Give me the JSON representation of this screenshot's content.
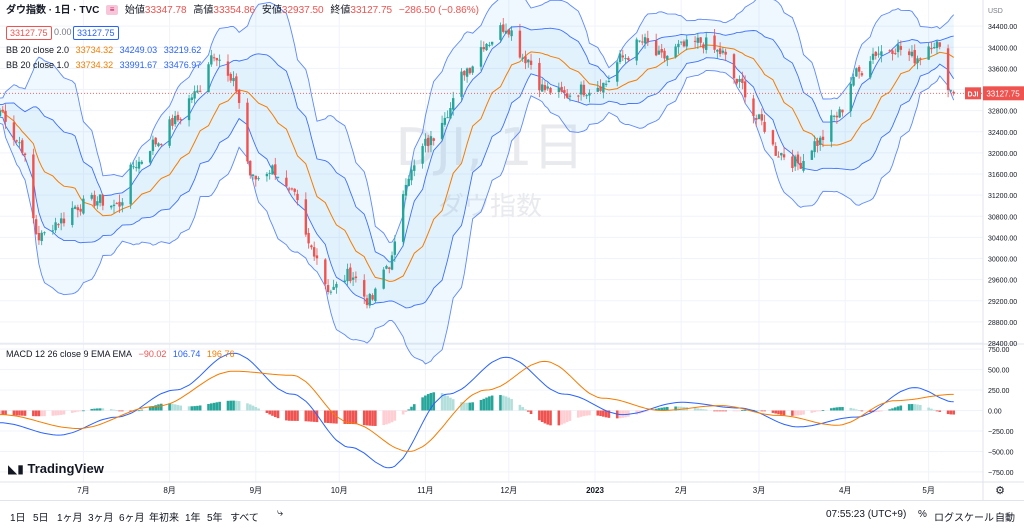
{
  "header": {
    "symbol": "ダウ指数 · 1日 · TVC",
    "ohlc": [
      {
        "label": "始値",
        "value": "33347.78"
      },
      {
        "label": "高値",
        "value": "33354.86"
      },
      {
        "label": "安値",
        "value": "32937.50"
      },
      {
        "label": "終値",
        "value": "33127.75"
      }
    ],
    "change": "−286.50 (−0.86%)",
    "bid": "33127.75",
    "spread": "0.00",
    "ask": "33127.75"
  },
  "indicators": {
    "bb2": {
      "label": "BB 20 close 2.0",
      "basis": "33734.32",
      "upper": "34249.03",
      "lower": "33219.62"
    },
    "bb1": {
      "label": "BB 20 close 1.0",
      "basis": "33734.32",
      "upper": "33991.67",
      "lower": "33476.97"
    },
    "macd": {
      "label": "MACD 12 26 close 9 EMA EMA",
      "hist": "−90.02",
      "macd": "106.74",
      "signal": "196.76"
    }
  },
  "watermark": {
    "line1": "DJI, 1日",
    "line2": "ダウ指数"
  },
  "last_price_tag": {
    "symbol": "DJI",
    "value": "33127.75"
  },
  "branding": "TradingView",
  "colors": {
    "up": "#26a69a",
    "down": "#ef5350",
    "bb_band": "#2962ff",
    "basis": "#f57c00",
    "macd": "#2962ff",
    "signal": "#f57c00"
  },
  "chart_data": [
    {
      "type": "candlestick",
      "currency": "USD",
      "ylim": [
        28400,
        34800
      ],
      "y_ticks": [
        "34400.00",
        "34000.00",
        "33600.00",
        "33200.00",
        "32800.00",
        "32400.00",
        "32000.00",
        "31600.00",
        "31200.00",
        "30800.00",
        "30400.00",
        "30000.00",
        "29600.00",
        "29200.00",
        "28800.00",
        "28400.00"
      ],
      "x_ticks": [
        "7月",
        "8月",
        "9月",
        "10月",
        "11月",
        "12月",
        "2023",
        "2月",
        "3月",
        "4月",
        "5月"
      ],
      "close_path": [
        {
          "x": "2022-06-01",
          "y": 32800
        },
        {
          "x": "2022-06-08",
          "y": 32200
        },
        {
          "x": "2022-06-15",
          "y": 30400
        },
        {
          "x": "2022-06-22",
          "y": 30700
        },
        {
          "x": "2022-06-29",
          "y": 31000
        },
        {
          "x": "2022-07-06",
          "y": 31100
        },
        {
          "x": "2022-07-13",
          "y": 31000
        },
        {
          "x": "2022-07-20",
          "y": 31800
        },
        {
          "x": "2022-07-27",
          "y": 32200
        },
        {
          "x": "2022-08-03",
          "y": 32600
        },
        {
          "x": "2022-08-10",
          "y": 33100
        },
        {
          "x": "2022-08-17",
          "y": 33900
        },
        {
          "x": "2022-08-24",
          "y": 33300
        },
        {
          "x": "2022-08-31",
          "y": 31500
        },
        {
          "x": "2022-09-07",
          "y": 31700
        },
        {
          "x": "2022-09-14",
          "y": 31200
        },
        {
          "x": "2022-09-21",
          "y": 30200
        },
        {
          "x": "2022-09-28",
          "y": 29400
        },
        {
          "x": "2022-10-05",
          "y": 29700
        },
        {
          "x": "2022-10-12",
          "y": 29200
        },
        {
          "x": "2022-10-19",
          "y": 29900
        },
        {
          "x": "2022-10-26",
          "y": 31600
        },
        {
          "x": "2022-11-02",
          "y": 32200
        },
        {
          "x": "2022-11-09",
          "y": 32800
        },
        {
          "x": "2022-11-16",
          "y": 33600
        },
        {
          "x": "2022-11-23",
          "y": 34100
        },
        {
          "x": "2022-11-30",
          "y": 34400
        },
        {
          "x": "2022-12-07",
          "y": 33800
        },
        {
          "x": "2022-12-14",
          "y": 33200
        },
        {
          "x": "2022-12-21",
          "y": 33100
        },
        {
          "x": "2022-12-28",
          "y": 33200
        },
        {
          "x": "2023-01-04",
          "y": 33300
        },
        {
          "x": "2023-01-11",
          "y": 33800
        },
        {
          "x": "2023-01-18",
          "y": 34100
        },
        {
          "x": "2023-01-25",
          "y": 33800
        },
        {
          "x": "2023-02-01",
          "y": 34000
        },
        {
          "x": "2023-02-08",
          "y": 34100
        },
        {
          "x": "2023-02-15",
          "y": 33900
        },
        {
          "x": "2023-02-22",
          "y": 33300
        },
        {
          "x": "2023-03-01",
          "y": 32600
        },
        {
          "x": "2023-03-08",
          "y": 32000
        },
        {
          "x": "2023-03-15",
          "y": 31800
        },
        {
          "x": "2023-03-22",
          "y": 32200
        },
        {
          "x": "2023-03-29",
          "y": 32700
        },
        {
          "x": "2023-04-05",
          "y": 33500
        },
        {
          "x": "2023-04-12",
          "y": 33900
        },
        {
          "x": "2023-04-19",
          "y": 34000
        },
        {
          "x": "2023-04-26",
          "y": 33800
        },
        {
          "x": "2023-05-03",
          "y": 34100
        },
        {
          "x": "2023-05-10",
          "y": 33127.75
        }
      ]
    },
    {
      "type": "macd",
      "ylim": [
        -800,
        800
      ],
      "y_ticks": [
        "750.00",
        "500.00",
        "250.00",
        "0.00",
        "−250.00",
        "−500.00",
        "−750.00"
      ],
      "macd_path": [
        {
          "x": "2022-06-01",
          "y": -150
        },
        {
          "x": "2022-06-22",
          "y": -300
        },
        {
          "x": "2022-07-13",
          "y": -80
        },
        {
          "x": "2022-08-03",
          "y": 250
        },
        {
          "x": "2022-08-24",
          "y": 700
        },
        {
          "x": "2022-09-14",
          "y": 200
        },
        {
          "x": "2022-10-05",
          "y": -450
        },
        {
          "x": "2022-10-19",
          "y": -700
        },
        {
          "x": "2022-11-09",
          "y": 200
        },
        {
          "x": "2022-11-30",
          "y": 650
        },
        {
          "x": "2022-12-21",
          "y": 200
        },
        {
          "x": "2023-01-11",
          "y": -50
        },
        {
          "x": "2023-02-01",
          "y": 100
        },
        {
          "x": "2023-02-22",
          "y": 30
        },
        {
          "x": "2023-03-15",
          "y": -200
        },
        {
          "x": "2023-04-05",
          "y": -80
        },
        {
          "x": "2023-04-26",
          "y": 280
        },
        {
          "x": "2023-05-10",
          "y": 106.74
        }
      ],
      "signal_path": [
        {
          "x": "2022-06-01",
          "y": -50
        },
        {
          "x": "2022-06-29",
          "y": -220
        },
        {
          "x": "2022-07-27",
          "y": 50
        },
        {
          "x": "2022-08-24",
          "y": 480
        },
        {
          "x": "2022-09-14",
          "y": 430
        },
        {
          "x": "2022-10-05",
          "y": -150
        },
        {
          "x": "2022-10-26",
          "y": -500
        },
        {
          "x": "2022-11-23",
          "y": 250
        },
        {
          "x": "2022-12-14",
          "y": 600
        },
        {
          "x": "2023-01-04",
          "y": 150
        },
        {
          "x": "2023-01-25",
          "y": 0
        },
        {
          "x": "2023-02-15",
          "y": 60
        },
        {
          "x": "2023-03-08",
          "y": -60
        },
        {
          "x": "2023-03-29",
          "y": -180
        },
        {
          "x": "2023-04-19",
          "y": 120
        },
        {
          "x": "2023-05-10",
          "y": 196.76
        }
      ]
    }
  ],
  "toolbar": {
    "ranges": [
      "1日",
      "5日",
      "1ヶ月",
      "3ヶ月",
      "6ヶ月",
      "年初来",
      "1年",
      "5年",
      "すべて"
    ],
    "time": "07:55:23 (UTC+9)",
    "percent": "%",
    "log": "ログスケール",
    "auto": "自動"
  }
}
